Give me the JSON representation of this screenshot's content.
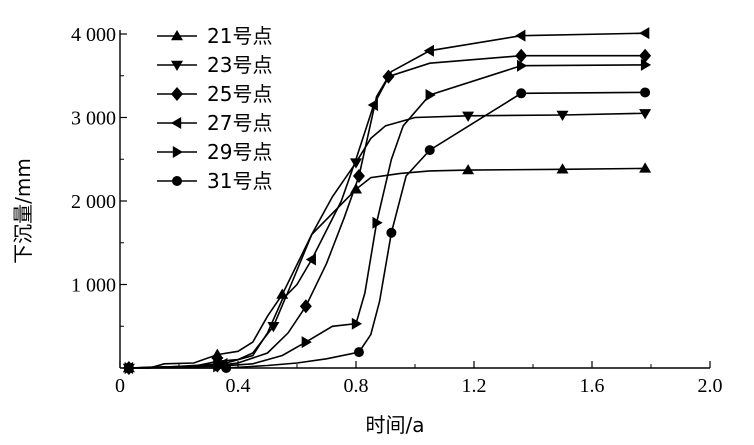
{
  "chart_data": {
    "type": "line",
    "title": "",
    "xlabel": "时间/a",
    "ylabel": "下沉量/mm",
    "xlim": [
      0,
      2.0
    ],
    "ylim": [
      0,
      4000
    ],
    "xticks": [
      0,
      0.4,
      0.8,
      1.2,
      1.6,
      2.0
    ],
    "xtick_labels": [
      "0",
      "0.4",
      "0.8",
      "1.2",
      "1.6",
      "2.0"
    ],
    "yticks": [
      1000,
      2000,
      3000,
      4000
    ],
    "ytick_labels": [
      "1 000",
      "2 000",
      "3 000",
      "4 000"
    ],
    "grid": false,
    "legend_position": "top-left",
    "series": [
      {
        "name": "21号点",
        "marker": "triangle-up",
        "x": [
          0.03,
          0.06,
          0.1,
          0.15,
          0.25,
          0.33,
          0.4,
          0.45,
          0.5,
          0.55,
          0.65,
          0.8,
          0.85,
          0.95,
          1.05,
          1.18,
          1.5,
          1.78
        ],
        "y": [
          0,
          0,
          0,
          50,
          60,
          160,
          200,
          310,
          620,
          880,
          1600,
          2140,
          2280,
          2330,
          2360,
          2370,
          2380,
          2390
        ],
        "marker_x": [
          0.03,
          0.33,
          0.55,
          0.8,
          1.18,
          1.5,
          1.78
        ],
        "marker_y": [
          0,
          160,
          880,
          2140,
          2370,
          2380,
          2390
        ]
      },
      {
        "name": "23号点",
        "marker": "triangle-down",
        "x": [
          0.03,
          0.1,
          0.25,
          0.33,
          0.4,
          0.45,
          0.52,
          0.58,
          0.65,
          0.72,
          0.8,
          0.85,
          0.9,
          1.0,
          1.18,
          1.5,
          1.78
        ],
        "y": [
          0,
          10,
          20,
          80,
          100,
          180,
          500,
          1000,
          1600,
          2050,
          2460,
          2750,
          2900,
          3000,
          3020,
          3030,
          3050
        ],
        "marker_x": [
          0.03,
          0.33,
          0.52,
          0.8,
          1.18,
          1.5,
          1.78
        ],
        "marker_y": [
          0,
          80,
          500,
          2460,
          3020,
          3030,
          3050
        ]
      },
      {
        "name": "25号点",
        "marker": "diamond",
        "x": [
          0.03,
          0.33,
          0.4,
          0.5,
          0.57,
          0.63,
          0.7,
          0.76,
          0.81,
          0.87,
          0.91,
          1.05,
          1.36,
          1.78
        ],
        "y": [
          0,
          30,
          60,
          180,
          420,
          740,
          1250,
          1800,
          2300,
          3250,
          3490,
          3650,
          3740,
          3740
        ],
        "marker_x": [
          0.03,
          0.33,
          0.63,
          0.81,
          0.91,
          1.36,
          1.78
        ],
        "marker_y": [
          0,
          30,
          740,
          2300,
          3490,
          3740,
          3740
        ]
      },
      {
        "name": "27号点",
        "marker": "triangle-left",
        "x": [
          0.03,
          0.1,
          0.3,
          0.35,
          0.45,
          0.5,
          0.55,
          0.6,
          0.65,
          0.75,
          0.8,
          0.86,
          0.92,
          1.05,
          1.36,
          1.78
        ],
        "y": [
          0,
          0,
          40,
          50,
          150,
          420,
          820,
          1000,
          1300,
          2000,
          2500,
          3150,
          3550,
          3800,
          3980,
          4010
        ],
        "marker_x": [
          0.03,
          0.35,
          0.65,
          0.86,
          1.05,
          1.36,
          1.78
        ],
        "marker_y": [
          0,
          50,
          1300,
          3150,
          3800,
          3980,
          4010
        ]
      },
      {
        "name": "29号点",
        "marker": "triangle-right",
        "x": [
          0.03,
          0.33,
          0.45,
          0.55,
          0.63,
          0.72,
          0.8,
          0.83,
          0.87,
          0.92,
          0.96,
          1.05,
          1.36,
          1.78
        ],
        "y": [
          0,
          20,
          50,
          150,
          310,
          500,
          530,
          900,
          1740,
          2500,
          2900,
          3270,
          3620,
          3630
        ],
        "marker_x": [
          0.03,
          0.33,
          0.63,
          0.8,
          0.87,
          1.05,
          1.36,
          1.78
        ],
        "marker_y": [
          0,
          20,
          310,
          530,
          1740,
          3270,
          3620,
          3630
        ]
      },
      {
        "name": "31号点",
        "marker": "circle",
        "x": [
          0.03,
          0.36,
          0.5,
          0.6,
          0.7,
          0.81,
          0.85,
          0.88,
          0.92,
          0.97,
          1.05,
          1.36,
          1.78
        ],
        "y": [
          0,
          0,
          30,
          60,
          110,
          190,
          400,
          800,
          1620,
          2300,
          2610,
          3290,
          3300
        ],
        "marker_x": [
          0.03,
          0.36,
          0.81,
          0.92,
          1.05,
          1.36,
          1.78
        ],
        "marker_y": [
          0,
          0,
          190,
          1620,
          2610,
          3290,
          3300
        ]
      }
    ]
  }
}
